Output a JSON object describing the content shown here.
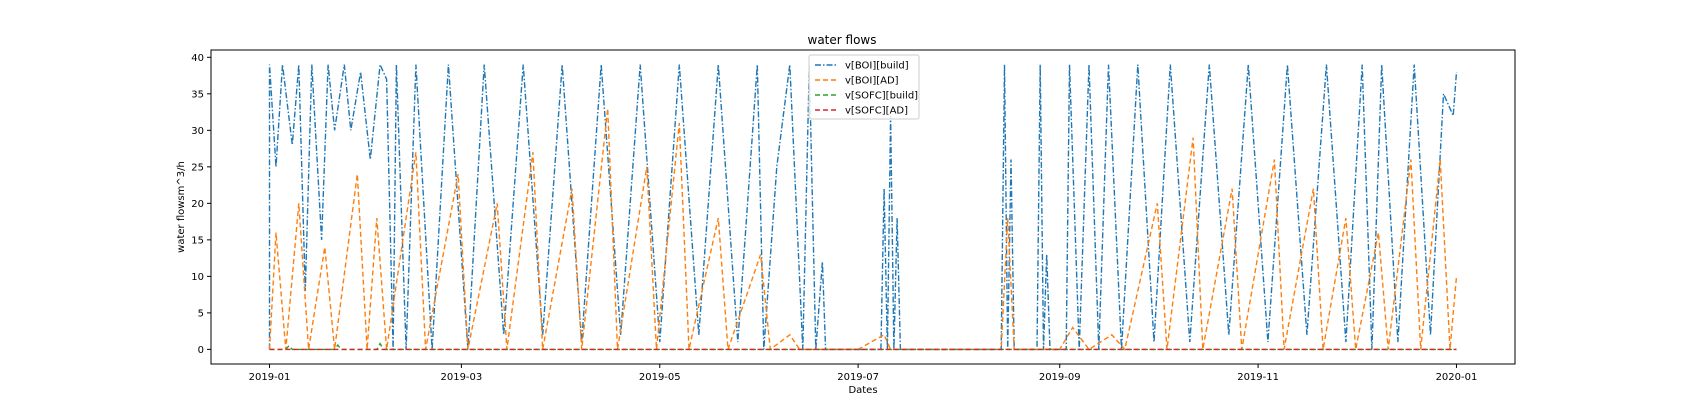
{
  "chart_data": {
    "type": "line",
    "title": "water flows",
    "xlabel": "Dates",
    "ylabel": "water flowsm^3/h",
    "xlim": [
      "2018-12-14",
      "2020-01-19"
    ],
    "ylim": [
      -2,
      41
    ],
    "x_ticks": [
      "2019-01",
      "2019-03",
      "2019-05",
      "2019-07",
      "2019-09",
      "2019-11",
      "2020-01"
    ],
    "y_ticks": [
      0,
      5,
      10,
      15,
      20,
      25,
      30,
      35,
      40
    ],
    "grid": false,
    "legend_position": "top-center",
    "series": [
      {
        "name": "v[BOI][build]",
        "color": "#1f77b4",
        "linestyle": "dashdot",
        "points": [
          [
            "2019-01-01",
            0
          ],
          [
            "2019-01-01",
            39
          ],
          [
            "2019-01-03",
            25
          ],
          [
            "2019-01-05",
            39
          ],
          [
            "2019-01-08",
            28
          ],
          [
            "2019-01-10",
            39
          ],
          [
            "2019-01-12",
            8
          ],
          [
            "2019-01-14",
            39
          ],
          [
            "2019-01-17",
            15
          ],
          [
            "2019-01-19",
            39
          ],
          [
            "2019-01-21",
            30
          ],
          [
            "2019-01-24",
            39
          ],
          [
            "2019-01-26",
            30
          ],
          [
            "2019-01-29",
            38
          ],
          [
            "2019-02-01",
            26
          ],
          [
            "2019-02-04",
            39
          ],
          [
            "2019-02-06",
            37
          ],
          [
            "2019-02-08",
            0
          ],
          [
            "2019-02-09",
            39
          ],
          [
            "2019-02-12",
            0
          ],
          [
            "2019-02-15",
            39
          ],
          [
            "2019-02-20",
            0
          ],
          [
            "2019-02-25",
            39
          ],
          [
            "2019-03-03",
            0
          ],
          [
            "2019-03-08",
            39
          ],
          [
            "2019-03-14",
            2
          ],
          [
            "2019-03-20",
            39
          ],
          [
            "2019-03-26",
            2
          ],
          [
            "2019-04-01",
            39
          ],
          [
            "2019-04-07",
            1
          ],
          [
            "2019-04-13",
            39
          ],
          [
            "2019-04-19",
            2
          ],
          [
            "2019-04-25",
            39
          ],
          [
            "2019-05-01",
            1
          ],
          [
            "2019-05-07",
            39
          ],
          [
            "2019-05-13",
            2
          ],
          [
            "2019-05-19",
            39
          ],
          [
            "2019-05-25",
            1
          ],
          [
            "2019-05-31",
            39
          ],
          [
            "2019-06-02",
            0
          ],
          [
            "2019-06-06",
            25
          ],
          [
            "2019-06-10",
            39
          ],
          [
            "2019-06-14",
            0
          ],
          [
            "2019-06-16",
            39
          ],
          [
            "2019-06-18",
            0
          ],
          [
            "2019-06-20",
            12
          ],
          [
            "2019-06-21",
            0
          ],
          [
            "2019-07-08",
            0
          ],
          [
            "2019-07-09",
            22
          ],
          [
            "2019-07-10",
            0
          ],
          [
            "2019-07-11",
            32
          ],
          [
            "2019-07-12",
            0
          ],
          [
            "2019-07-13",
            18
          ],
          [
            "2019-07-14",
            0
          ],
          [
            "2019-08-14",
            0
          ],
          [
            "2019-08-15",
            39
          ],
          [
            "2019-08-16",
            0
          ],
          [
            "2019-08-17",
            26
          ],
          [
            "2019-08-18",
            0
          ],
          [
            "2019-08-25",
            0
          ],
          [
            "2019-08-26",
            39
          ],
          [
            "2019-08-27",
            0
          ],
          [
            "2019-08-28",
            13
          ],
          [
            "2019-08-29",
            0
          ],
          [
            "2019-09-03",
            0
          ],
          [
            "2019-09-04",
            39
          ],
          [
            "2019-09-07",
            0
          ],
          [
            "2019-09-10",
            39
          ],
          [
            "2019-09-13",
            0
          ],
          [
            "2019-09-16",
            39
          ],
          [
            "2019-09-20",
            0
          ],
          [
            "2019-09-25",
            39
          ],
          [
            "2019-09-30",
            1
          ],
          [
            "2019-10-05",
            39
          ],
          [
            "2019-10-11",
            1
          ],
          [
            "2019-10-17",
            39
          ],
          [
            "2019-10-23",
            2
          ],
          [
            "2019-10-29",
            39
          ],
          [
            "2019-11-04",
            1
          ],
          [
            "2019-11-10",
            39
          ],
          [
            "2019-11-16",
            2
          ],
          [
            "2019-11-22",
            39
          ],
          [
            "2019-11-28",
            1
          ],
          [
            "2019-12-03",
            39
          ],
          [
            "2019-12-06",
            0
          ],
          [
            "2019-12-09",
            39
          ],
          [
            "2019-12-14",
            1
          ],
          [
            "2019-12-19",
            39
          ],
          [
            "2019-12-24",
            2
          ],
          [
            "2019-12-28",
            35
          ],
          [
            "2019-12-31",
            32
          ],
          [
            "2020-01-01",
            38
          ]
        ]
      },
      {
        "name": "v[BOI][AD]",
        "color": "#ff7f0e",
        "linestyle": "dashed",
        "points": [
          [
            "2019-01-01",
            0
          ],
          [
            "2019-01-03",
            16
          ],
          [
            "2019-01-06",
            0
          ],
          [
            "2019-01-10",
            20
          ],
          [
            "2019-01-13",
            0
          ],
          [
            "2019-01-18",
            14
          ],
          [
            "2019-01-21",
            0
          ],
          [
            "2019-01-28",
            24
          ],
          [
            "2019-01-31",
            0
          ],
          [
            "2019-02-03",
            18
          ],
          [
            "2019-02-06",
            0
          ],
          [
            "2019-02-15",
            27
          ],
          [
            "2019-02-18",
            0
          ],
          [
            "2019-02-28",
            24
          ],
          [
            "2019-03-03",
            0
          ],
          [
            "2019-03-12",
            20
          ],
          [
            "2019-03-15",
            0
          ],
          [
            "2019-03-23",
            27
          ],
          [
            "2019-03-26",
            0
          ],
          [
            "2019-04-04",
            22
          ],
          [
            "2019-04-07",
            0
          ],
          [
            "2019-04-15",
            33
          ],
          [
            "2019-04-18",
            0
          ],
          [
            "2019-04-27",
            25
          ],
          [
            "2019-04-30",
            0
          ],
          [
            "2019-05-07",
            31
          ],
          [
            "2019-05-10",
            0
          ],
          [
            "2019-05-19",
            18
          ],
          [
            "2019-05-22",
            0
          ],
          [
            "2019-06-01",
            13
          ],
          [
            "2019-06-04",
            0
          ],
          [
            "2019-06-10",
            2
          ],
          [
            "2019-06-13",
            0
          ],
          [
            "2019-07-01",
            0
          ],
          [
            "2019-07-09",
            2
          ],
          [
            "2019-07-11",
            0
          ],
          [
            "2019-08-14",
            0
          ],
          [
            "2019-08-16",
            18
          ],
          [
            "2019-08-18",
            0
          ],
          [
            "2019-09-01",
            0
          ],
          [
            "2019-09-05",
            3
          ],
          [
            "2019-09-10",
            0
          ],
          [
            "2019-09-17",
            2
          ],
          [
            "2019-09-21",
            0
          ],
          [
            "2019-10-01",
            20
          ],
          [
            "2019-10-04",
            0
          ],
          [
            "2019-10-12",
            29
          ],
          [
            "2019-10-15",
            0
          ],
          [
            "2019-10-24",
            22
          ],
          [
            "2019-10-27",
            0
          ],
          [
            "2019-11-06",
            26
          ],
          [
            "2019-11-09",
            0
          ],
          [
            "2019-11-18",
            22
          ],
          [
            "2019-11-21",
            0
          ],
          [
            "2019-11-28",
            18
          ],
          [
            "2019-12-01",
            0
          ],
          [
            "2019-12-08",
            16
          ],
          [
            "2019-12-11",
            0
          ],
          [
            "2019-12-18",
            26
          ],
          [
            "2019-12-21",
            0
          ],
          [
            "2019-12-27",
            26
          ],
          [
            "2019-12-30",
            0
          ],
          [
            "2020-01-01",
            10
          ]
        ]
      },
      {
        "name": "v[SOFC][build]",
        "color": "#2ca02c",
        "linestyle": "dashed",
        "points": [
          [
            "2019-01-01",
            0
          ],
          [
            "2019-01-06",
            0
          ],
          [
            "2019-01-07",
            0.5
          ],
          [
            "2019-01-08",
            0
          ],
          [
            "2019-01-21",
            0
          ],
          [
            "2019-01-22",
            0.6
          ],
          [
            "2019-01-23",
            0
          ],
          [
            "2019-02-03",
            0
          ],
          [
            "2019-02-04",
            0.8
          ],
          [
            "2019-02-05",
            0
          ],
          [
            "2019-03-01",
            0
          ],
          [
            "2019-06-01",
            0
          ],
          [
            "2019-09-01",
            0
          ],
          [
            "2019-12-01",
            0
          ],
          [
            "2020-01-01",
            0
          ]
        ]
      },
      {
        "name": "v[SOFC][AD]",
        "color": "#d62728",
        "linestyle": "dashed",
        "points": [
          [
            "2019-01-01",
            0
          ],
          [
            "2019-04-01",
            0
          ],
          [
            "2019-07-01",
            0
          ],
          [
            "2019-10-01",
            0
          ],
          [
            "2020-01-01",
            0
          ]
        ]
      }
    ]
  }
}
